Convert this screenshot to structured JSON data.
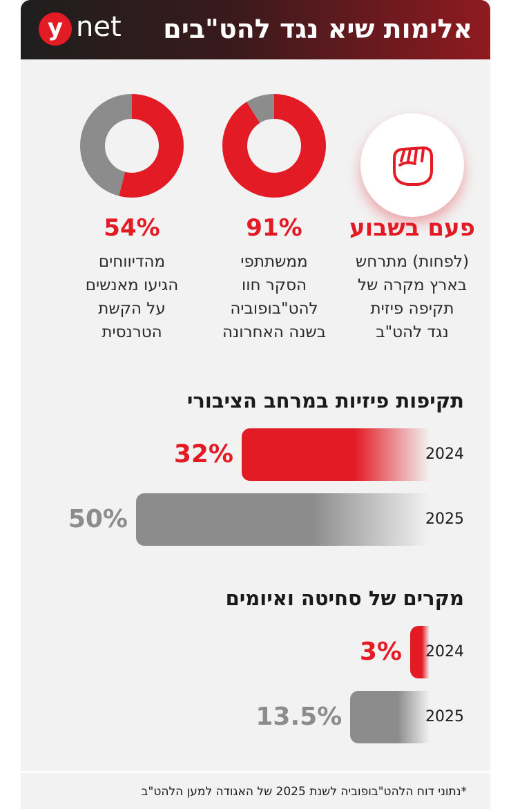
{
  "header": {
    "title": "אלימות שיא נגד להט\"בים",
    "logo_y": "y",
    "logo_net": "net"
  },
  "colors": {
    "accent_red": "#e21b25",
    "gray": "#8c8c8c"
  },
  "stats": [
    {
      "icon": "raised-fist-icon",
      "headline": "פעם בשבוע",
      "lines": [
        "(לפחות) מתרחש",
        "בארץ מקרה של",
        "תקיפה פיזית",
        "נגד להט\"ב"
      ]
    },
    {
      "headline": "91%",
      "lines": [
        "ממשתתפי",
        "הסקר חוו",
        "להט\"בופוביה",
        "בשנה האחרונה"
      ]
    },
    {
      "headline": "54%",
      "lines": [
        "מהדיווחים",
        "הגיעו מאנשים",
        "על הקשת",
        "הטרנסית"
      ]
    }
  ],
  "chart_data": [
    {
      "type": "pie",
      "variant": "donut",
      "values": [
        91,
        9
      ],
      "colors": [
        "#e21b25",
        "#8c8c8c"
      ]
    },
    {
      "type": "pie",
      "variant": "donut",
      "values": [
        54,
        46
      ],
      "colors": [
        "#e21b25",
        "#8c8c8c"
      ]
    },
    {
      "type": "bar",
      "orientation": "horizontal",
      "title": "תקיפות פיזיות במרחב הציבורי",
      "categories": [
        "2024",
        "2025"
      ],
      "values": [
        32,
        50
      ],
      "value_labels": [
        "32%",
        "50%"
      ],
      "colors": [
        "#e21b25",
        "#8c8c8c"
      ],
      "xlim": [
        0,
        100
      ]
    },
    {
      "type": "bar",
      "orientation": "horizontal",
      "title": "מקרים של סחיטה ואיומים",
      "categories": [
        "2024",
        "2025"
      ],
      "values": [
        3,
        13.5
      ],
      "value_labels": [
        "3%",
        "13.5%"
      ],
      "colors": [
        "#e21b25",
        "#8c8c8c"
      ],
      "xlim": [
        0,
        100
      ]
    }
  ],
  "footer": {
    "note": "*נתוני דוח הלהט\"בופוביה לשנת 2025 של האגודה למען הלהט\"ב"
  }
}
